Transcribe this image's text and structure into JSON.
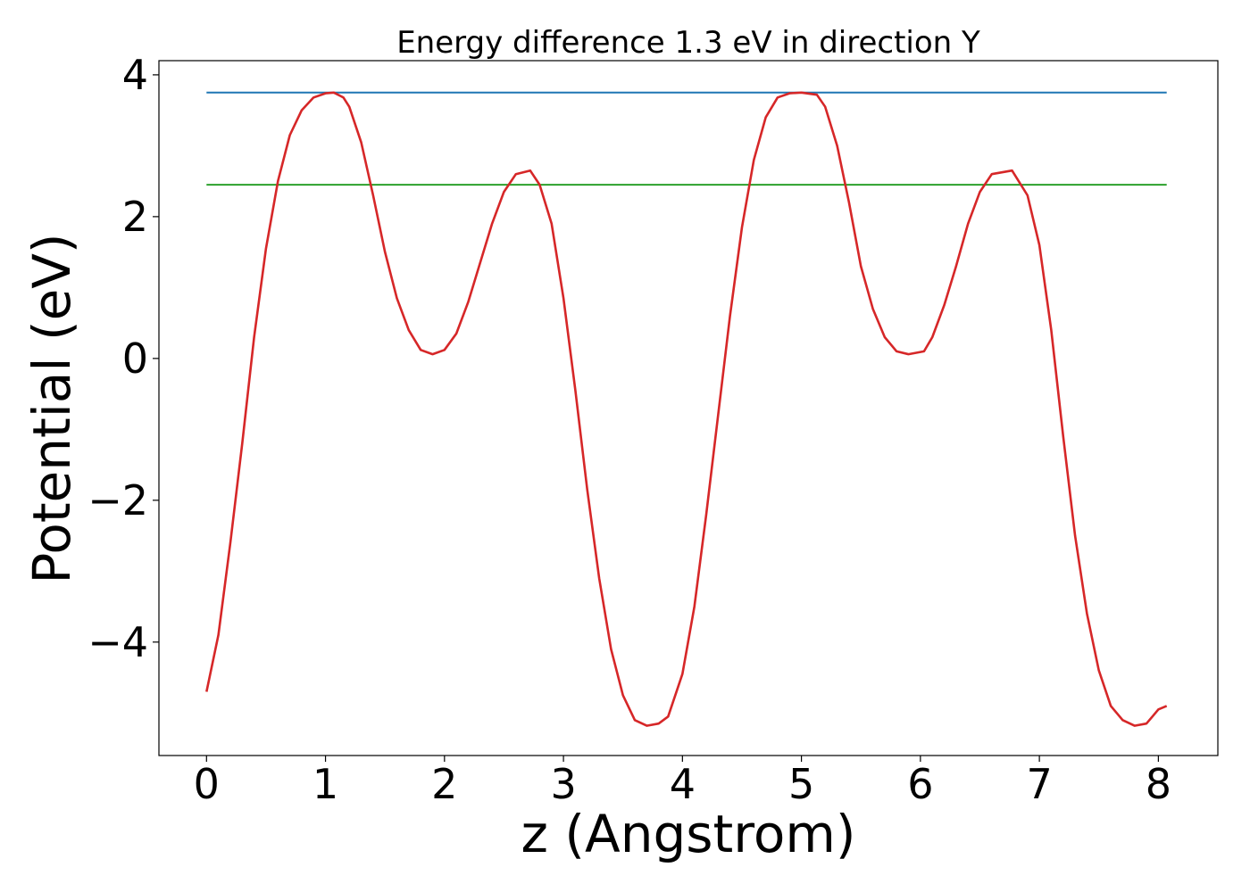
{
  "chart_data": {
    "type": "line",
    "title": "Energy difference 1.3 eV in direction Y",
    "xlabel": "z (Angstrom)",
    "ylabel": "Potential (eV)",
    "xlim": [
      -0.4,
      8.5
    ],
    "ylim": [
      -5.6,
      4.2
    ],
    "x_ticks": [
      0,
      1,
      2,
      3,
      4,
      5,
      6,
      7,
      8
    ],
    "x_tick_labels": [
      "0",
      "1",
      "2",
      "3",
      "4",
      "5",
      "6",
      "7",
      "8"
    ],
    "y_ticks": [
      -4,
      -2,
      0,
      2,
      4
    ],
    "y_tick_labels": [
      "−4",
      "−2",
      "0",
      "2",
      "4"
    ],
    "grid": false,
    "legend": "none",
    "series": [
      {
        "color": "#1f77b4",
        "x": [
          0,
          8.07
        ],
        "y": [
          3.75,
          3.75
        ]
      },
      {
        "color": "#2ca02c",
        "x": [
          0,
          8.07
        ],
        "y": [
          2.45,
          2.45
        ]
      },
      {
        "color": "#d62728",
        "x": [
          0,
          0.1,
          0.2,
          0.3,
          0.4,
          0.5,
          0.6,
          0.7,
          0.8,
          0.9,
          1.0,
          1.07,
          1.15,
          1.2,
          1.3,
          1.4,
          1.5,
          1.6,
          1.7,
          1.8,
          1.9,
          2.0,
          2.1,
          2.2,
          2.3,
          2.4,
          2.5,
          2.6,
          2.72,
          2.8,
          2.9,
          3.0,
          3.1,
          3.2,
          3.3,
          3.4,
          3.5,
          3.6,
          3.7,
          3.8,
          3.88,
          4.0,
          4.1,
          4.2,
          4.3,
          4.4,
          4.5,
          4.6,
          4.7,
          4.8,
          4.9,
          5.0,
          5.13,
          5.2,
          5.3,
          5.4,
          5.5,
          5.6,
          5.7,
          5.8,
          5.9,
          6.03,
          6.1,
          6.2,
          6.3,
          6.4,
          6.5,
          6.6,
          6.77,
          6.9,
          7.0,
          7.1,
          7.2,
          7.3,
          7.4,
          7.5,
          7.6,
          7.7,
          7.8,
          7.9,
          7.95,
          8.0,
          8.07
        ],
        "y": [
          -4.7,
          -3.9,
          -2.6,
          -1.2,
          0.3,
          1.55,
          2.5,
          3.15,
          3.5,
          3.68,
          3.74,
          3.75,
          3.68,
          3.55,
          3.05,
          2.3,
          1.5,
          0.85,
          0.4,
          0.12,
          0.06,
          0.12,
          0.35,
          0.8,
          1.35,
          1.9,
          2.35,
          2.6,
          2.65,
          2.45,
          1.9,
          0.85,
          -0.45,
          -1.85,
          -3.1,
          -4.1,
          -4.75,
          -5.1,
          -5.18,
          -5.15,
          -5.05,
          -4.45,
          -3.5,
          -2.2,
          -0.8,
          0.6,
          1.85,
          2.8,
          3.4,
          3.68,
          3.74,
          3.75,
          3.72,
          3.55,
          3.0,
          2.2,
          1.3,
          0.7,
          0.3,
          0.1,
          0.06,
          0.1,
          0.3,
          0.75,
          1.3,
          1.9,
          2.35,
          2.6,
          2.65,
          2.3,
          1.6,
          0.4,
          -1.1,
          -2.5,
          -3.6,
          -4.4,
          -4.9,
          -5.1,
          -5.18,
          -5.15,
          -5.05,
          -4.95,
          -4.9
        ]
      }
    ]
  }
}
